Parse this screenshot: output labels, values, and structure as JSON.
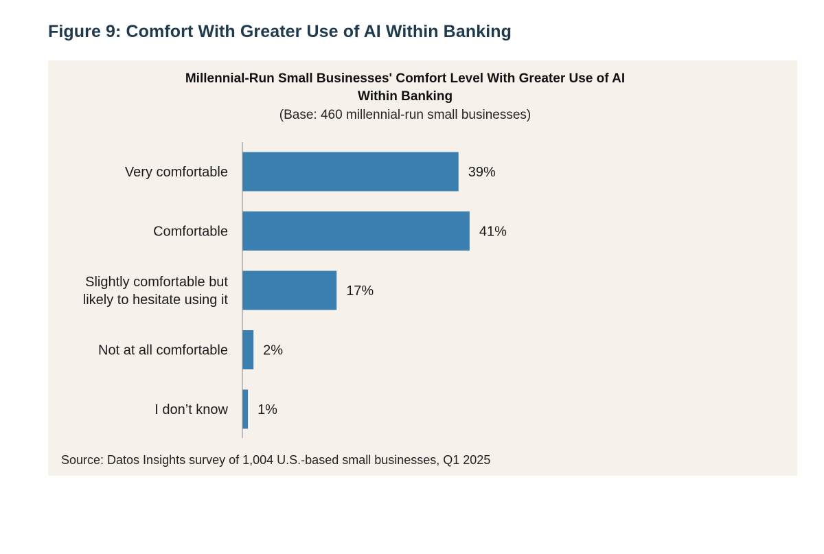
{
  "page": {
    "figure_title": "Figure 9: Comfort With Greater Use of AI Within Banking",
    "source": "Source: Datos Insights survey of 1,004 U.S.-based small businesses, Q1 2025"
  },
  "colors": {
    "bar": "#3a7fb0",
    "panel_background": "#f6f1eb",
    "figure_title": "#1f3a4d"
  },
  "chart_data": {
    "type": "bar",
    "orientation": "horizontal",
    "title": "Millennial-Run Small Businesses' Comfort Level With Greater Use of AI Within Banking",
    "title_lines": [
      "Millennial-Run Small Businesses' Comfort Level With Greater Use of AI",
      "Within Banking"
    ],
    "subtitle": "(Base: 460 millennial-run small businesses)",
    "categories": [
      [
        "Very comfortable"
      ],
      [
        "Comfortable"
      ],
      [
        "Slightly comfortable but",
        "likely to hesitate using it"
      ],
      [
        "Not at all comfortable"
      ],
      [
        "I don’t know"
      ]
    ],
    "values": [
      39,
      41,
      17,
      2,
      1
    ],
    "value_labels": [
      "39%",
      "41%",
      "17%",
      "2%",
      "1%"
    ],
    "unit": "%",
    "xlim": [
      0,
      100
    ],
    "grid": false,
    "legend": "none"
  }
}
